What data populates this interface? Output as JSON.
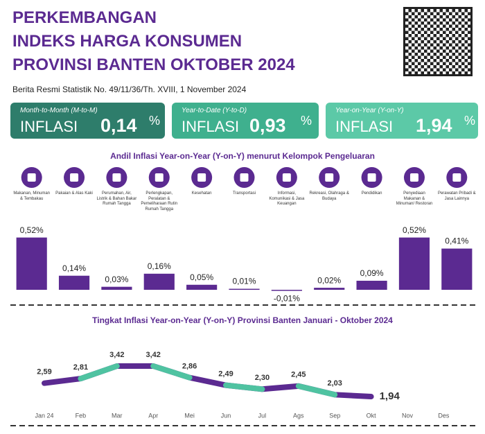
{
  "header": {
    "title": [
      "PERKEMBANGAN",
      "INDEKS HARGA KONSUMEN",
      "PROVINSI BANTEN OKTOBER 2024"
    ],
    "subtitle": "Berita Resmi Statistik No. 49/11/36/Th. XVIII, 1 November 2024"
  },
  "cards": [
    {
      "label": "Month-to-Month (M-to-M)",
      "name": "INFLASI",
      "value": "0,14",
      "unit": "%"
    },
    {
      "label": "Year-to-Date (Y-to-D)",
      "name": "INFLASI",
      "value": "0,93",
      "unit": "%"
    },
    {
      "label": "Year-on-Year (Y-on-Y)",
      "name": "INFLASI",
      "value": "1,94",
      "unit": "%"
    }
  ],
  "chart_data": [
    {
      "type": "bar",
      "title": "Andil Inflasi Year-on-Year (Y-on-Y) menurut Kelompok Pengeluaran",
      "categories": [
        "Makanan, Minuman & Tembakau",
        "Pakaian & Alas Kaki",
        "Perumahan, Air, Listrik & Bahan Bakar Rumah Tangga",
        "Perlengkapan, Peralatan & Pemeliharaan Rutin Rumah Tangga",
        "Kesehatan",
        "Transportasi",
        "Informasi, Komunikasi & Jasa Keuangan",
        "Rekreasi, Olahraga & Budaya",
        "Pendidikan",
        "Penyediaan Makanan & Minuman/ Restoran",
        "Perawatan Pribadi & Jasa Lainnya"
      ],
      "values": [
        0.52,
        0.14,
        0.03,
        0.16,
        0.05,
        0.01,
        -0.01,
        0.02,
        0.09,
        0.52,
        0.41
      ],
      "value_labels": [
        "0,52%",
        "0,14%",
        "0,03%",
        "0,16%",
        "0,05%",
        "0,01%",
        "-0,01%",
        "0,02%",
        "0,09%",
        "0,52%",
        "0,41%"
      ],
      "color": "#5b2a91"
    },
    {
      "type": "line",
      "title": "Tingkat Inflasi Year-on-Year (Y-on-Y) Provinsi Banten Januari - Oktober 2024",
      "categories": [
        "Jan 24",
        "Feb",
        "Mar",
        "Apr",
        "Mei",
        "Jun",
        "Jul",
        "Ags",
        "Sep",
        "Okt",
        "Nov",
        "Des"
      ],
      "values": [
        2.59,
        2.81,
        3.42,
        3.42,
        2.86,
        2.49,
        2.3,
        2.45,
        2.03,
        1.94,
        null,
        null
      ],
      "value_labels": [
        "2,59",
        "2,81",
        "3,42",
        "3,42",
        "2,86",
        "2,49",
        "2,30",
        "2,45",
        "2,03",
        "1,94",
        null,
        null
      ],
      "colors": [
        "#5b2a91",
        "#4fc3a1"
      ]
    }
  ]
}
